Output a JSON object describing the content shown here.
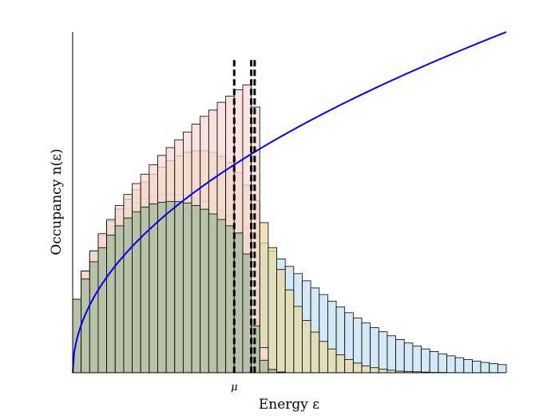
{
  "chart_data": {
    "type": "bar",
    "xlabel": "Energy ε",
    "ylabel": "Occupancy n(ε)",
    "x_ticks": [
      {
        "label": "μ",
        "value": 19
      }
    ],
    "xlim": [
      0,
      51
    ],
    "ylim": [
      0,
      1.09
    ],
    "grid": false,
    "bin_width": 1,
    "curve": {
      "color": "#0000ee",
      "form": "sqrt",
      "coefficient": 0.1526
    },
    "vertical_lines": [
      19,
      21,
      21.4
    ],
    "series": [
      {
        "color": "#c6e2f2",
        "values": [
          0.235,
          0.325,
          0.38,
          0.43,
          0.468,
          0.5,
          0.525,
          0.545,
          0.558,
          0.565,
          0.57,
          0.573,
          0.572,
          0.568,
          0.56,
          0.55,
          0.538,
          0.522,
          0.505,
          0.486,
          0.464,
          0.44,
          0.415,
          0.389,
          0.364,
          0.34,
          0.317,
          0.294,
          0.271,
          0.25,
          0.229,
          0.21,
          0.192,
          0.175,
          0.159,
          0.144,
          0.131,
          0.118,
          0.106,
          0.095,
          0.085,
          0.076,
          0.068,
          0.06,
          0.054,
          0.048,
          0.042,
          0.037,
          0.033,
          0.029,
          0.026
        ]
      },
      {
        "color": "#ead8a6",
        "values": [
          0.235,
          0.325,
          0.388,
          0.44,
          0.485,
          0.523,
          0.555,
          0.585,
          0.61,
          0.635,
          0.657,
          0.678,
          0.693,
          0.705,
          0.71,
          0.71,
          0.705,
          0.692,
          0.672,
          0.64,
          0.6,
          0.55,
          0.48,
          0.4,
          0.33,
          0.265,
          0.212,
          0.167,
          0.13,
          0.1,
          0.076,
          0.057,
          0.042,
          0.031,
          0.022,
          0.016,
          0.011,
          0.008,
          0.005,
          0.004,
          0.003,
          0.002,
          0.001,
          0.001,
          0,
          0,
          0,
          0,
          0,
          0,
          0
        ]
      },
      {
        "color": "#f8d8d6",
        "values": [
          0.235,
          0.325,
          0.39,
          0.445,
          0.49,
          0.535,
          0.57,
          0.605,
          0.635,
          0.665,
          0.695,
          0.72,
          0.745,
          0.77,
          0.795,
          0.82,
          0.84,
          0.865,
          0.885,
          0.905,
          0.92,
          0.85,
          0.08,
          0.01,
          0.002,
          0,
          0,
          0,
          0,
          0,
          0,
          0,
          0,
          0,
          0,
          0,
          0,
          0,
          0,
          0,
          0,
          0,
          0,
          0,
          0,
          0,
          0,
          0,
          0,
          0,
          0
        ]
      },
      {
        "color": "#a6b89c",
        "values": [
          0.235,
          0.3,
          0.355,
          0.4,
          0.44,
          0.47,
          0.495,
          0.515,
          0.53,
          0.54,
          0.545,
          0.548,
          0.547,
          0.543,
          0.535,
          0.523,
          0.508,
          0.49,
          0.47,
          0.447,
          0.38,
          0.15,
          0.04,
          0.01,
          0.002,
          0,
          0,
          0,
          0,
          0,
          0,
          0,
          0,
          0,
          0,
          0,
          0,
          0,
          0,
          0,
          0,
          0,
          0,
          0,
          0,
          0,
          0,
          0,
          0,
          0,
          0
        ]
      }
    ]
  }
}
